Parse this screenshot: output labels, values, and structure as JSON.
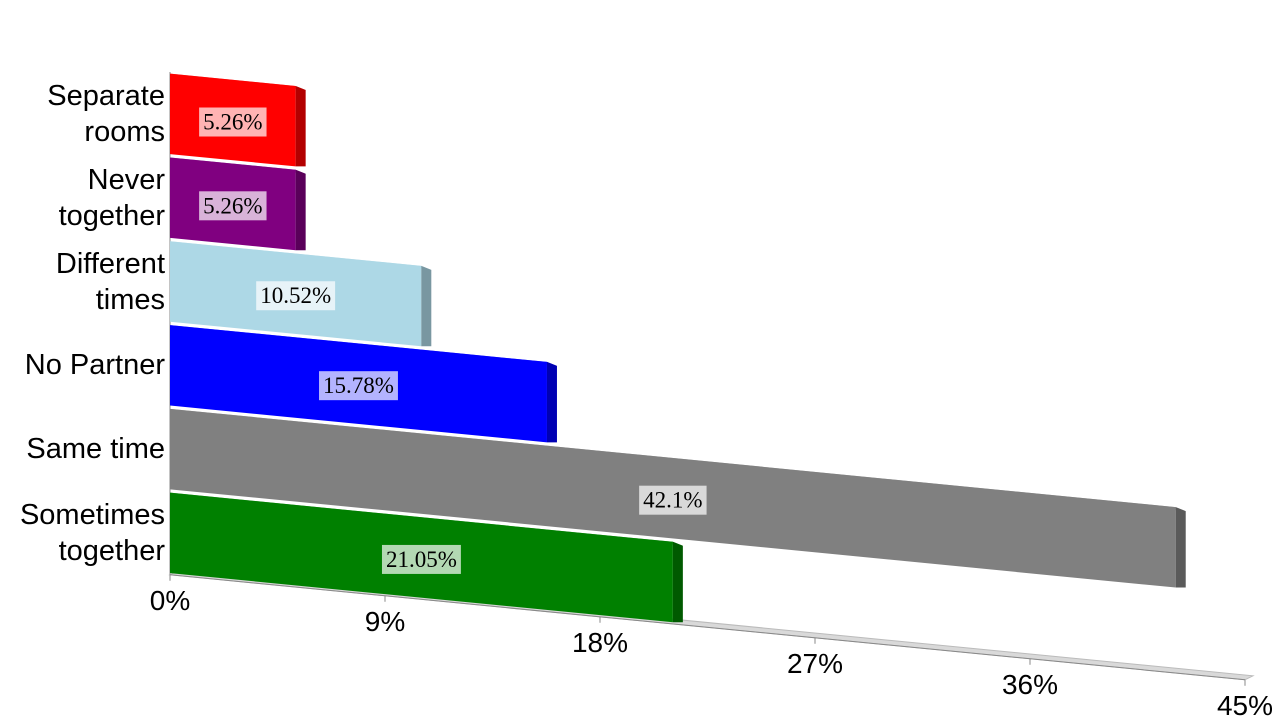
{
  "chart_data": {
    "type": "bar3d",
    "categories": [
      "Separate rooms",
      "Never together",
      "Different times",
      "No Partner",
      "Same time",
      "Sometimes together"
    ],
    "values": [
      5.26,
      5.26,
      10.52,
      15.78,
      42.1,
      21.05
    ],
    "value_labels": [
      "5.26%",
      "5.26%",
      "10.52%",
      "15.78%",
      "42.1%",
      "21.05%"
    ],
    "colors": [
      "#ff0000",
      "#800080",
      "#add8e6",
      "#0000ff",
      "#808080",
      "#008000"
    ],
    "xlim": [
      0,
      45
    ],
    "xticks": [
      {
        "value": 0,
        "label": "0%"
      },
      {
        "value": 9,
        "label": "9%"
      },
      {
        "value": 18,
        "label": "18%"
      },
      {
        "value": 27,
        "label": "27%"
      },
      {
        "value": 36,
        "label": "36%"
      },
      {
        "value": 45,
        "label": "45%"
      }
    ]
  }
}
